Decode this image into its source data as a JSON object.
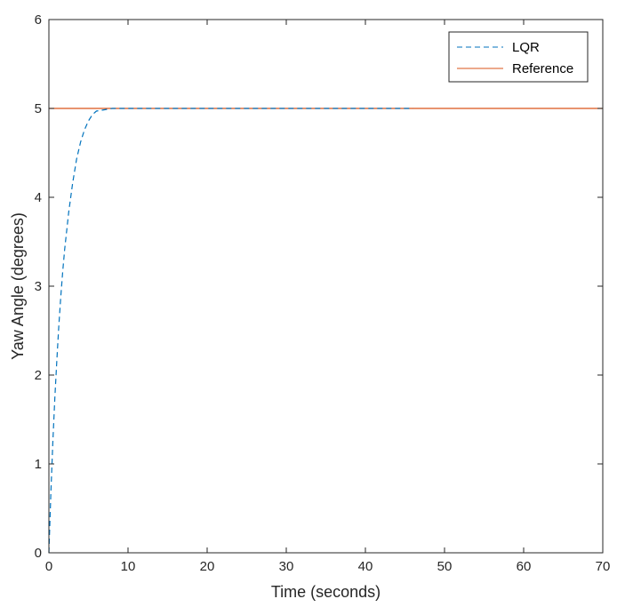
{
  "chart_data": {
    "type": "line",
    "xlabel": "Time (seconds)",
    "ylabel": "Yaw Angle (degrees)",
    "xlim": [
      0,
      70
    ],
    "ylim": [
      0,
      6
    ],
    "xticks": [
      0,
      10,
      20,
      30,
      40,
      50,
      60,
      70
    ],
    "yticks": [
      0,
      1,
      2,
      3,
      4,
      5,
      6
    ],
    "grid": false,
    "legend_position": "top-right",
    "series": [
      {
        "name": "LQR",
        "style": "dashed",
        "color": "#0072BD",
        "x": [
          0,
          0.25,
          0.5,
          0.75,
          1,
          1.25,
          1.5,
          1.75,
          2,
          2.5,
          3,
          3.5,
          4,
          4.5,
          5,
          5.5,
          6,
          8,
          10,
          20,
          30,
          40,
          46
        ],
        "y": [
          0,
          0.68,
          1.25,
          1.74,
          2.16,
          2.55,
          2.88,
          3.17,
          3.42,
          3.83,
          4.16,
          4.43,
          4.62,
          4.76,
          4.86,
          4.93,
          4.97,
          5.0,
          5.0,
          5.0,
          5.0,
          5.0,
          5.0
        ]
      },
      {
        "name": "Reference",
        "style": "solid",
        "color": "#D95319",
        "x": [
          0,
          70
        ],
        "y": [
          5,
          5
        ]
      }
    ]
  }
}
